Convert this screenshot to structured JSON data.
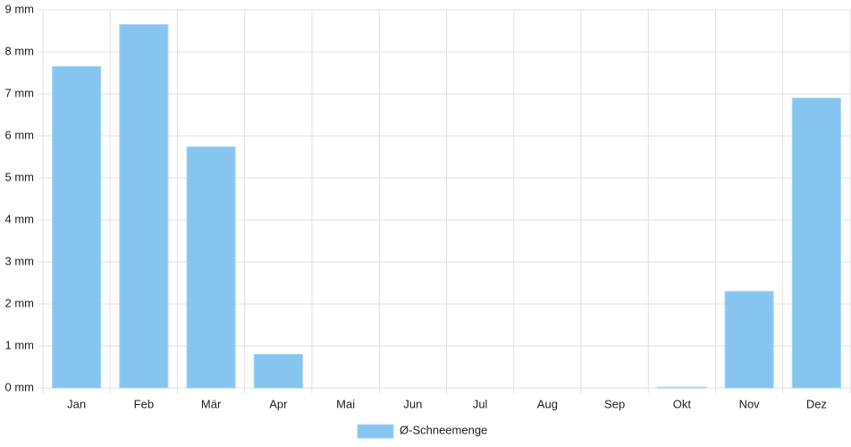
{
  "chart_data": {
    "type": "bar",
    "categories": [
      "Jan",
      "Feb",
      "Mär",
      "Apr",
      "Mai",
      "Jun",
      "Jul",
      "Aug",
      "Sep",
      "Okt",
      "Nov",
      "Dez"
    ],
    "series": [
      {
        "name": "Ø-Schneemenge",
        "color": "#86c5f0",
        "values": [
          7.65,
          8.65,
          5.74,
          0.8,
          0,
          0,
          0,
          0,
          0,
          0.02,
          2.3,
          6.9
        ]
      }
    ],
    "ylim": [
      0,
      9
    ],
    "yticks": [
      {
        "value": 0,
        "label": "0 mm"
      },
      {
        "value": 1,
        "label": "1 mm"
      },
      {
        "value": 2,
        "label": "2 mm"
      },
      {
        "value": 3,
        "label": "3 mm"
      },
      {
        "value": 4,
        "label": "4 mm"
      },
      {
        "value": 5,
        "label": "5 mm"
      },
      {
        "value": 6,
        "label": "6 mm"
      },
      {
        "value": 7,
        "label": "7 mm"
      },
      {
        "value": 8,
        "label": "8 mm"
      },
      {
        "value": 9,
        "label": "9 mm"
      }
    ],
    "grid": true,
    "legend": "bottom"
  }
}
